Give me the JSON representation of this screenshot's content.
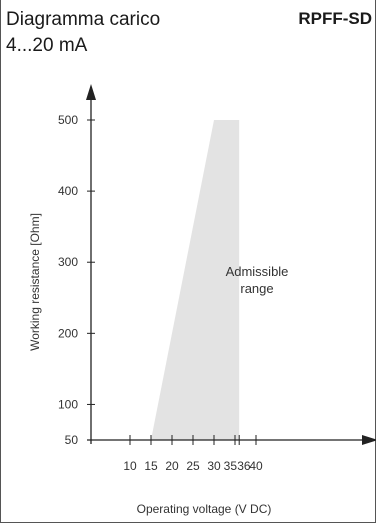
{
  "header": {
    "title_line1": "Diagramma carico",
    "title_line2": "4...20 mA",
    "product_code": "RPFF-SD"
  },
  "chart_data": {
    "type": "area",
    "xlabel": "Operating voltage  (V DC)",
    "ylabel": "Working resistance  [Ohm]",
    "xlim": [
      5,
      43
    ],
    "ylim": [
      50,
      500
    ],
    "x_ticks": [
      10,
      15,
      20,
      25,
      30,
      35,
      36,
      40
    ],
    "y_ticks": [
      50,
      100,
      200,
      300,
      400,
      500
    ],
    "region": {
      "label_line1": "Admissible",
      "label_line2": "range",
      "polygon": [
        [
          15,
          50
        ],
        [
          30,
          500
        ],
        [
          36,
          500
        ],
        [
          36,
          50
        ]
      ],
      "fill": "#e3e3e3"
    },
    "grid": false,
    "axis_color": "#222222"
  }
}
